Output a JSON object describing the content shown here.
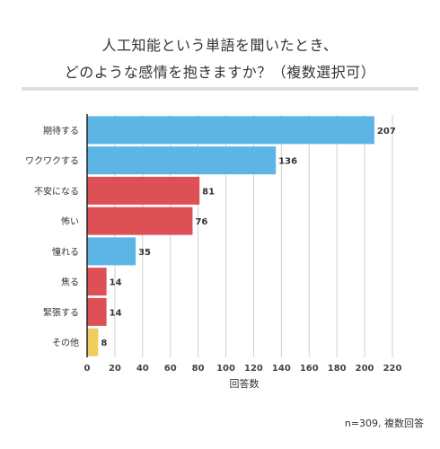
{
  "title_line1": "人工知能という単語を聞いたとき、",
  "title_line2": "どのような感情を抱きますか？（複数選択可）",
  "footnote": "n=309, 複数回答",
  "colors": {
    "positive": "#5db5e6",
    "negative": "#dd5056",
    "neutral": "#f0cd5f",
    "grid": "#d0d0d0",
    "axis": "#222222"
  },
  "chart_data": {
    "type": "bar",
    "orientation": "horizontal",
    "title": "人工知能という単語を聞いたとき、どのような感情を抱きますか？（複数選択可）",
    "xlabel": "回答数",
    "ylabel": "",
    "xlim": [
      0,
      220
    ],
    "xticks": [
      0,
      20,
      40,
      60,
      80,
      100,
      120,
      140,
      160,
      180,
      200,
      220
    ],
    "grid": true,
    "categories": [
      "期待する",
      "ワクワクする",
      "不安になる",
      "怖い",
      "憧れる",
      "焦る",
      "緊張する",
      "その他"
    ],
    "values": [
      207,
      136,
      81,
      76,
      35,
      14,
      14,
      8
    ],
    "bar_colors": [
      "#5db5e6",
      "#5db5e6",
      "#dd5056",
      "#dd5056",
      "#5db5e6",
      "#dd5056",
      "#dd5056",
      "#f0cd5f"
    ]
  }
}
